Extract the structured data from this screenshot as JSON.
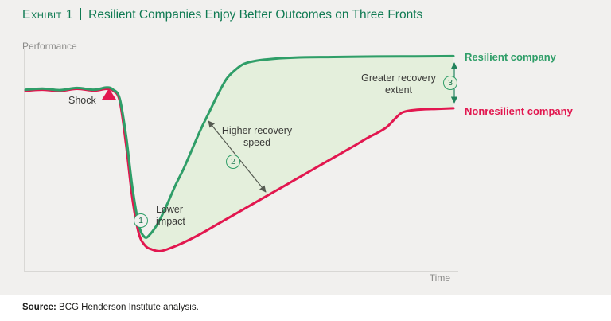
{
  "header": {
    "exhibit_label": "Exhibit 1",
    "title": "Resilient Companies Enjoy Better Outcomes on Three Fronts"
  },
  "axes": {
    "y_label": "Performance",
    "x_label": "Time"
  },
  "series_labels": {
    "resilient": "Resilient company",
    "nonresilient": "Nonresilient company"
  },
  "annotations": {
    "shock_label": "Shock",
    "lower_impact": {
      "number": "1",
      "line1": "Lower",
      "line2": "impact"
    },
    "recovery_speed": {
      "number": "2",
      "line1": "Higher recovery",
      "line2": "speed"
    },
    "recovery_extent": {
      "number": "3",
      "line1": "Greater recovery",
      "line2": "extent"
    }
  },
  "source": {
    "label": "Source:",
    "text": " BCG Henderson Institute analysis."
  },
  "colors": {
    "title_green": "#0f7a52",
    "resilient_green": "#2f9e68",
    "nonresilient_red": "#e2174f",
    "area_fill": "#e4efdc",
    "axis_gray": "#c9c8c5",
    "label_gray": "#8b8b89",
    "text_dark": "#3a3a38",
    "background": "#f1f0ee",
    "source_background": "#ffffff"
  },
  "chart_data": {
    "type": "line",
    "title": "Resilient Companies Enjoy Better Outcomes on Three Fronts",
    "xlabel": "Time",
    "ylabel": "Performance",
    "x_range": [
      0,
      100
    ],
    "y_range": [
      0,
      100
    ],
    "grid": false,
    "legend_position": "right-end-labels",
    "area_between_series_fill": "#e4efdc",
    "annotations": [
      "Shock (at onset of drop)",
      "1 Lower impact (resilient dip is shallower)",
      "2 Higher recovery speed (resilient rebounds faster)",
      "3 Greater recovery extent (resilient ends higher)"
    ],
    "series": [
      {
        "name": "Resilient company",
        "color": "#2f9e68",
        "points": [
          [
            0,
            83
          ],
          [
            4,
            83.5
          ],
          [
            8,
            82.8
          ],
          [
            12,
            83.8
          ],
          [
            16,
            83
          ],
          [
            19,
            84
          ],
          [
            20.5,
            83
          ],
          [
            22,
            79
          ],
          [
            23.5,
            62
          ],
          [
            25,
            38
          ],
          [
            26.5,
            21
          ],
          [
            27.8,
            15.5
          ],
          [
            29,
            16.5
          ],
          [
            31,
            22
          ],
          [
            33,
            30
          ],
          [
            35,
            39
          ],
          [
            37,
            47
          ],
          [
            39,
            56
          ],
          [
            41,
            65
          ],
          [
            43,
            73
          ],
          [
            45,
            81
          ],
          [
            47,
            88
          ],
          [
            49,
            92
          ],
          [
            51,
            94.8
          ],
          [
            54,
            96.3
          ],
          [
            58,
            97.2
          ],
          [
            64,
            97.8
          ],
          [
            72,
            98
          ],
          [
            82,
            98.2
          ],
          [
            91,
            98.3
          ],
          [
            100,
            98.4
          ]
        ]
      },
      {
        "name": "Nonresilient company",
        "color": "#e2174f",
        "points": [
          [
            0,
            82.5
          ],
          [
            4,
            83
          ],
          [
            8,
            82.4
          ],
          [
            12,
            83.4
          ],
          [
            16,
            82.6
          ],
          [
            19,
            83.4
          ],
          [
            20.5,
            82.5
          ],
          [
            22,
            78
          ],
          [
            23.5,
            58
          ],
          [
            25,
            33
          ],
          [
            26.5,
            17
          ],
          [
            28,
            11.5
          ],
          [
            29.5,
            9.8
          ],
          [
            31.5,
            9
          ],
          [
            34,
            10.5
          ],
          [
            37,
            13
          ],
          [
            41,
            17
          ],
          [
            45,
            21.5
          ],
          [
            49,
            26
          ],
          [
            53,
            30.5
          ],
          [
            57,
            35
          ],
          [
            61,
            39.5
          ],
          [
            65,
            44
          ],
          [
            69,
            48.5
          ],
          [
            73,
            53
          ],
          [
            77,
            57.5
          ],
          [
            80,
            61
          ],
          [
            82.5,
            63.5
          ],
          [
            84.5,
            66
          ],
          [
            86.5,
            70
          ],
          [
            88,
            72.5
          ],
          [
            90,
            73.5
          ],
          [
            93,
            74
          ],
          [
            96,
            74.2
          ],
          [
            100,
            74.5
          ]
        ]
      }
    ]
  }
}
